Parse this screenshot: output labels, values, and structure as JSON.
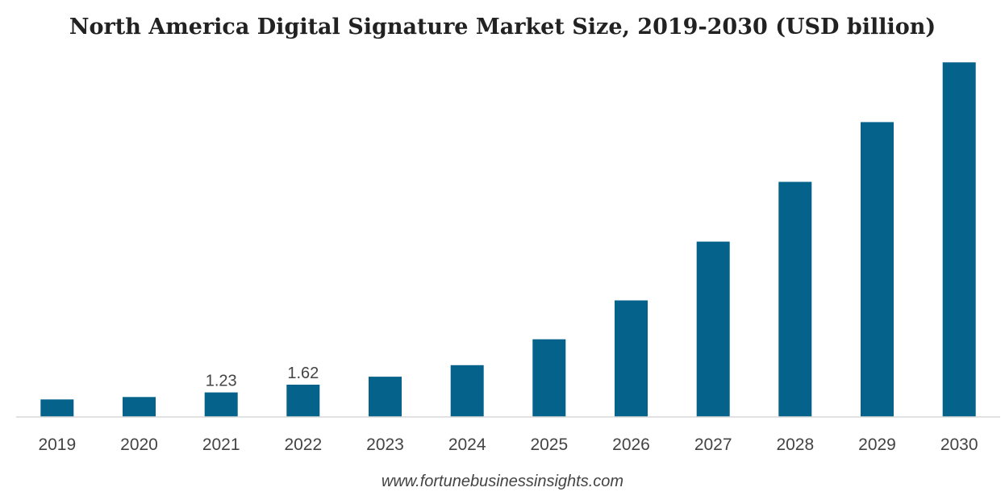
{
  "chart_data": {
    "type": "bar",
    "title": "North America Digital Signature Market Size, 2019-2030 (USD billion)",
    "categories": [
      "2019",
      "2020",
      "2021",
      "2022",
      "2023",
      "2024",
      "2025",
      "2026",
      "2027",
      "2028",
      "2029",
      "2030"
    ],
    "values": [
      0.88,
      1.0,
      1.23,
      1.62,
      2.02,
      2.6,
      3.9,
      5.85,
      8.8,
      11.8,
      14.8,
      17.8
    ],
    "data_labels": [
      "",
      "",
      "1.23",
      "1.62",
      "",
      "",
      "",
      "",
      "",
      "",
      "",
      ""
    ],
    "xlabel": "",
    "ylabel": "",
    "ylim": [
      0,
      18.5
    ],
    "grid": false,
    "legend": "none",
    "bar_color": "#05638b",
    "axis_color": "#d9d9d9"
  },
  "source": "www.fortunebusinessinsights.com"
}
